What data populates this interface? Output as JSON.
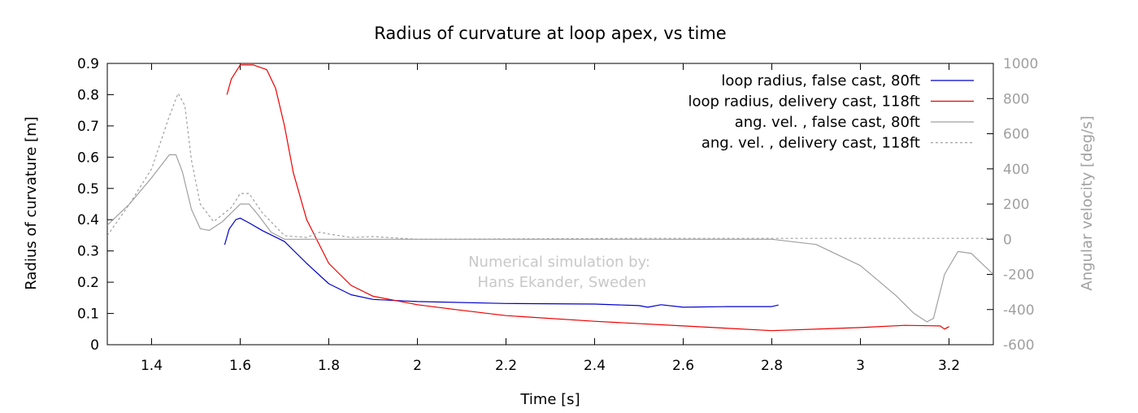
{
  "chart_data": {
    "type": "line",
    "title": "Radius of curvature at loop apex, vs time",
    "xlabel": "Time [s]",
    "ylabel": "Radius of curvature [m]",
    "y2label": "Angular velocity [deg/s]",
    "xlim": [
      1.3,
      3.3
    ],
    "ylim": [
      0,
      0.9
    ],
    "y2lim": [
      -600,
      1000
    ],
    "x_ticks": [
      "1.4",
      "1.6",
      "1.8",
      "2",
      "2.2",
      "2.4",
      "2.6",
      "2.8",
      "3",
      "3.2"
    ],
    "y_ticks": [
      "0",
      "0.1",
      "0.2",
      "0.3",
      "0.4",
      "0.5",
      "0.6",
      "0.7",
      "0.8",
      "0.9"
    ],
    "y2_ticks": [
      "-600",
      "-400",
      "-200",
      "0",
      "200",
      "400",
      "600",
      "800",
      "1000"
    ],
    "grid": false,
    "legend_position": "top-right",
    "annotation": [
      "Numerical simulation by:",
      "Hans Ekander, Sweden"
    ],
    "series": [
      {
        "name": "loop radius, false cast, 80ft",
        "axis": "left",
        "color": "#0000cc",
        "dash": "",
        "points": [
          [
            1.565,
            0.32
          ],
          [
            1.575,
            0.37
          ],
          [
            1.59,
            0.4
          ],
          [
            1.6,
            0.405
          ],
          [
            1.62,
            0.39
          ],
          [
            1.65,
            0.365
          ],
          [
            1.7,
            0.33
          ],
          [
            1.75,
            0.26
          ],
          [
            1.8,
            0.195
          ],
          [
            1.85,
            0.16
          ],
          [
            1.9,
            0.145
          ],
          [
            2.0,
            0.138
          ],
          [
            2.2,
            0.132
          ],
          [
            2.4,
            0.13
          ],
          [
            2.5,
            0.125
          ],
          [
            2.52,
            0.12
          ],
          [
            2.55,
            0.128
          ],
          [
            2.6,
            0.12
          ],
          [
            2.7,
            0.122
          ],
          [
            2.8,
            0.122
          ],
          [
            2.815,
            0.127
          ]
        ]
      },
      {
        "name": "loop radius, delivery cast, 118ft",
        "axis": "left",
        "color": "#ee0000",
        "dash": "",
        "points": [
          [
            1.57,
            0.8
          ],
          [
            1.58,
            0.85
          ],
          [
            1.6,
            0.895
          ],
          [
            1.63,
            0.895
          ],
          [
            1.66,
            0.88
          ],
          [
            1.68,
            0.82
          ],
          [
            1.7,
            0.7
          ],
          [
            1.72,
            0.55
          ],
          [
            1.75,
            0.4
          ],
          [
            1.8,
            0.26
          ],
          [
            1.85,
            0.19
          ],
          [
            1.9,
            0.155
          ],
          [
            2.0,
            0.128
          ],
          [
            2.1,
            0.11
          ],
          [
            2.2,
            0.093
          ],
          [
            2.4,
            0.075
          ],
          [
            2.6,
            0.06
          ],
          [
            2.8,
            0.045
          ],
          [
            3.0,
            0.055
          ],
          [
            3.1,
            0.062
          ],
          [
            3.18,
            0.06
          ],
          [
            3.19,
            0.05
          ],
          [
            3.2,
            0.058
          ]
        ]
      },
      {
        "name": "ang. vel. , false cast, 80ft",
        "axis": "right",
        "color": "#a0a0a0",
        "dash": "",
        "points": [
          [
            1.3,
            80
          ],
          [
            1.35,
            200
          ],
          [
            1.4,
            350
          ],
          [
            1.44,
            480
          ],
          [
            1.455,
            480
          ],
          [
            1.47,
            380
          ],
          [
            1.49,
            170
          ],
          [
            1.51,
            60
          ],
          [
            1.53,
            50
          ],
          [
            1.56,
            100
          ],
          [
            1.6,
            200
          ],
          [
            1.62,
            200
          ],
          [
            1.64,
            140
          ],
          [
            1.67,
            40
          ],
          [
            1.7,
            0
          ],
          [
            1.8,
            0
          ],
          [
            2.0,
            0
          ],
          [
            2.5,
            0
          ],
          [
            2.8,
            0
          ],
          [
            2.9,
            -30
          ],
          [
            3.0,
            -150
          ],
          [
            3.08,
            -320
          ],
          [
            3.12,
            -420
          ],
          [
            3.15,
            -470
          ],
          [
            3.165,
            -450
          ],
          [
            3.19,
            -200
          ],
          [
            3.22,
            -70
          ],
          [
            3.25,
            -80
          ],
          [
            3.3,
            -200
          ]
        ]
      },
      {
        "name": "ang. vel. , delivery cast, 118ft",
        "axis": "right",
        "color": "#a0a0a0",
        "dash": "3,3",
        "points": [
          [
            1.3,
            20
          ],
          [
            1.35,
            200
          ],
          [
            1.4,
            400
          ],
          [
            1.44,
            700
          ],
          [
            1.46,
            830
          ],
          [
            1.475,
            760
          ],
          [
            1.49,
            450
          ],
          [
            1.51,
            200
          ],
          [
            1.54,
            100
          ],
          [
            1.58,
            180
          ],
          [
            1.6,
            260
          ],
          [
            1.62,
            260
          ],
          [
            1.65,
            150
          ],
          [
            1.7,
            20
          ],
          [
            1.75,
            10
          ],
          [
            1.78,
            40
          ],
          [
            1.8,
            30
          ],
          [
            1.85,
            10
          ],
          [
            1.9,
            15
          ],
          [
            2.0,
            0
          ],
          [
            2.5,
            5
          ],
          [
            3.0,
            5
          ],
          [
            3.3,
            5
          ]
        ]
      }
    ]
  }
}
